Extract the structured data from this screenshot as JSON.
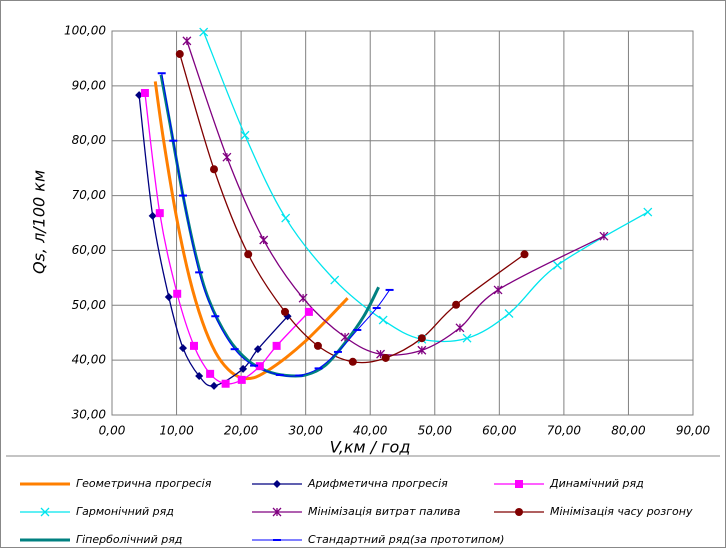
{
  "chart_data": {
    "type": "line",
    "xlabel": "V,км / год",
    "ylabel": "Qs, л/100 км",
    "xlim": [
      0,
      90
    ],
    "ylim": [
      30,
      100
    ],
    "xticks": [
      {
        "value": 0,
        "label": "0,00"
      },
      {
        "value": 10,
        "label": "10,00"
      },
      {
        "value": 20,
        "label": "20,00"
      },
      {
        "value": 30,
        "label": "30,00"
      },
      {
        "value": 40,
        "label": "40,00"
      },
      {
        "value": 50,
        "label": "50,00"
      },
      {
        "value": 60,
        "label": "60,00"
      },
      {
        "value": 70,
        "label": "70,00"
      },
      {
        "value": 80,
        "label": "80,00"
      },
      {
        "value": 90,
        "label": "90,00"
      }
    ],
    "yticks": [
      {
        "value": 30,
        "label": "30,00"
      },
      {
        "value": 40,
        "label": "40,00"
      },
      {
        "value": 50,
        "label": "50,00"
      },
      {
        "value": 60,
        "label": "60,00"
      },
      {
        "value": 70,
        "label": "70,00"
      },
      {
        "value": 80,
        "label": "80,00"
      },
      {
        "value": 90,
        "label": "90,00"
      },
      {
        "value": 100,
        "label": "100,00"
      }
    ],
    "grid": true,
    "legend": "bottom",
    "series": [
      {
        "name": "Геометрична прогресія",
        "color": "#ff7f00",
        "width": 3,
        "marker": "none",
        "x": [
          6.7,
          8,
          10,
          12,
          14,
          16,
          18,
          20,
          22,
          24,
          27,
          30,
          33,
          36.5
        ],
        "values": [
          90.8,
          80,
          66,
          55,
          47,
          41.5,
          38.3,
          36.8,
          36.8,
          38,
          40.5,
          43.5,
          47,
          51.3
        ]
      },
      {
        "name": "Арифметична прогресія",
        "color": "#000080",
        "width": 1.3,
        "marker": "diamond",
        "x": [
          4.2,
          6.3,
          8.8,
          11,
          13.5,
          15.8,
          20.3,
          22.6,
          27.2
        ],
        "values": [
          88.3,
          66.3,
          51.5,
          42.2,
          37.1,
          35.3,
          38.4,
          42,
          48
        ]
      },
      {
        "name": "Динамічний ряд",
        "color": "#ff00ff",
        "width": 1.3,
        "marker": "square",
        "x": [
          5.1,
          7.4,
          10.1,
          12.7,
          15.2,
          17.6,
          20.1,
          22.9,
          25.5,
          30.5
        ],
        "values": [
          88.7,
          66.8,
          52.1,
          42.6,
          37.5,
          35.7,
          36.4,
          38.9,
          42.6,
          48.8
        ]
      },
      {
        "name": "Гармонічний ряд",
        "color": "#00e5ee",
        "width": 1.3,
        "marker": "x",
        "x": [
          14.2,
          20.6,
          26.9,
          34.5,
          42,
          48,
          55,
          61.5,
          69,
          83
        ],
        "values": [
          99.8,
          81,
          65.9,
          54.6,
          47.3,
          43.8,
          44,
          48.5,
          57.3,
          67
        ]
      },
      {
        "name": "Мінімізація витрат палива",
        "color": "#800080",
        "width": 1.3,
        "marker": "star",
        "x": [
          11.6,
          17.8,
          23.5,
          29.6,
          36.1,
          41.6,
          48,
          53.9,
          59.8,
          76.2
        ],
        "values": [
          98.2,
          77,
          61.9,
          51.3,
          44.2,
          41.1,
          41.8,
          45.9,
          52.8,
          62.6
        ]
      },
      {
        "name": "Мінімізація часу розгону",
        "color": "#800000",
        "width": 1.3,
        "marker": "circle",
        "x": [
          10.5,
          15.8,
          21.1,
          26.8,
          31.9,
          37.3,
          42.4,
          48,
          53.3,
          63.9
        ],
        "values": [
          95.8,
          74.8,
          59.3,
          48.8,
          42.6,
          39.7,
          40.4,
          44,
          50.1,
          59.3
        ]
      },
      {
        "name": "Гіперболічний ряд",
        "color": "#008080",
        "width": 3,
        "marker": "none",
        "x": [
          7.6,
          9,
          11,
          13,
          15,
          18,
          21,
          24,
          27,
          30,
          33,
          36,
          39,
          41.3
        ],
        "values": [
          92,
          83,
          70,
          59,
          51,
          44,
          40,
          38,
          37.2,
          37.3,
          39,
          43,
          48,
          53.3
        ]
      },
      {
        "name": "Стандартний ряд(за прототипом)",
        "color": "#0000ff",
        "width": 1,
        "marker": "dash",
        "x": [
          7.7,
          9.5,
          11,
          13.5,
          16,
          19,
          22,
          26,
          29,
          32,
          35,
          38,
          41,
          43
        ],
        "values": [
          92.3,
          80,
          70,
          56,
          48,
          42,
          39,
          37.3,
          37.2,
          38.5,
          41.5,
          45.5,
          49.5,
          52.8
        ]
      }
    ]
  }
}
